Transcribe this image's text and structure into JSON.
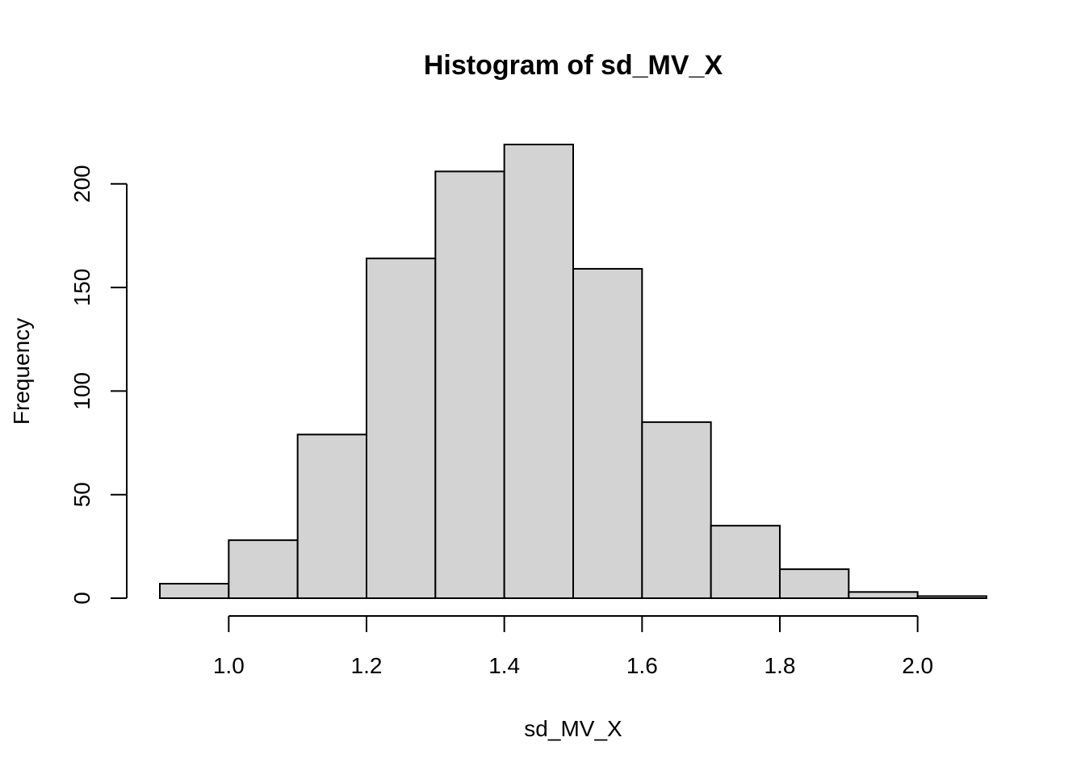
{
  "chart_data": {
    "type": "bar",
    "title": "Histogram of sd_MV_X",
    "xlabel": "sd_MV_X",
    "ylabel": "Frequency",
    "bin_edges": [
      0.9,
      1.0,
      1.1,
      1.2,
      1.3,
      1.4,
      1.5,
      1.6,
      1.7,
      1.8,
      1.9,
      2.0,
      2.1
    ],
    "values": [
      7,
      28,
      79,
      164,
      206,
      219,
      159,
      85,
      35,
      14,
      3,
      1
    ],
    "xlim": [
      0.9,
      2.1
    ],
    "ylim": [
      0,
      219
    ],
    "x_ticks": [
      1.0,
      1.2,
      1.4,
      1.6,
      1.8,
      2.0
    ],
    "x_tick_labels": [
      "1.0",
      "1.2",
      "1.4",
      "1.6",
      "1.8",
      "2.0"
    ],
    "y_ticks": [
      0,
      50,
      100,
      150,
      200
    ],
    "y_tick_labels": [
      "0",
      "50",
      "100",
      "150",
      "200"
    ],
    "bar_fill": "#d3d3d3",
    "bar_stroke": "#000000",
    "grid": false,
    "legend": "none"
  }
}
